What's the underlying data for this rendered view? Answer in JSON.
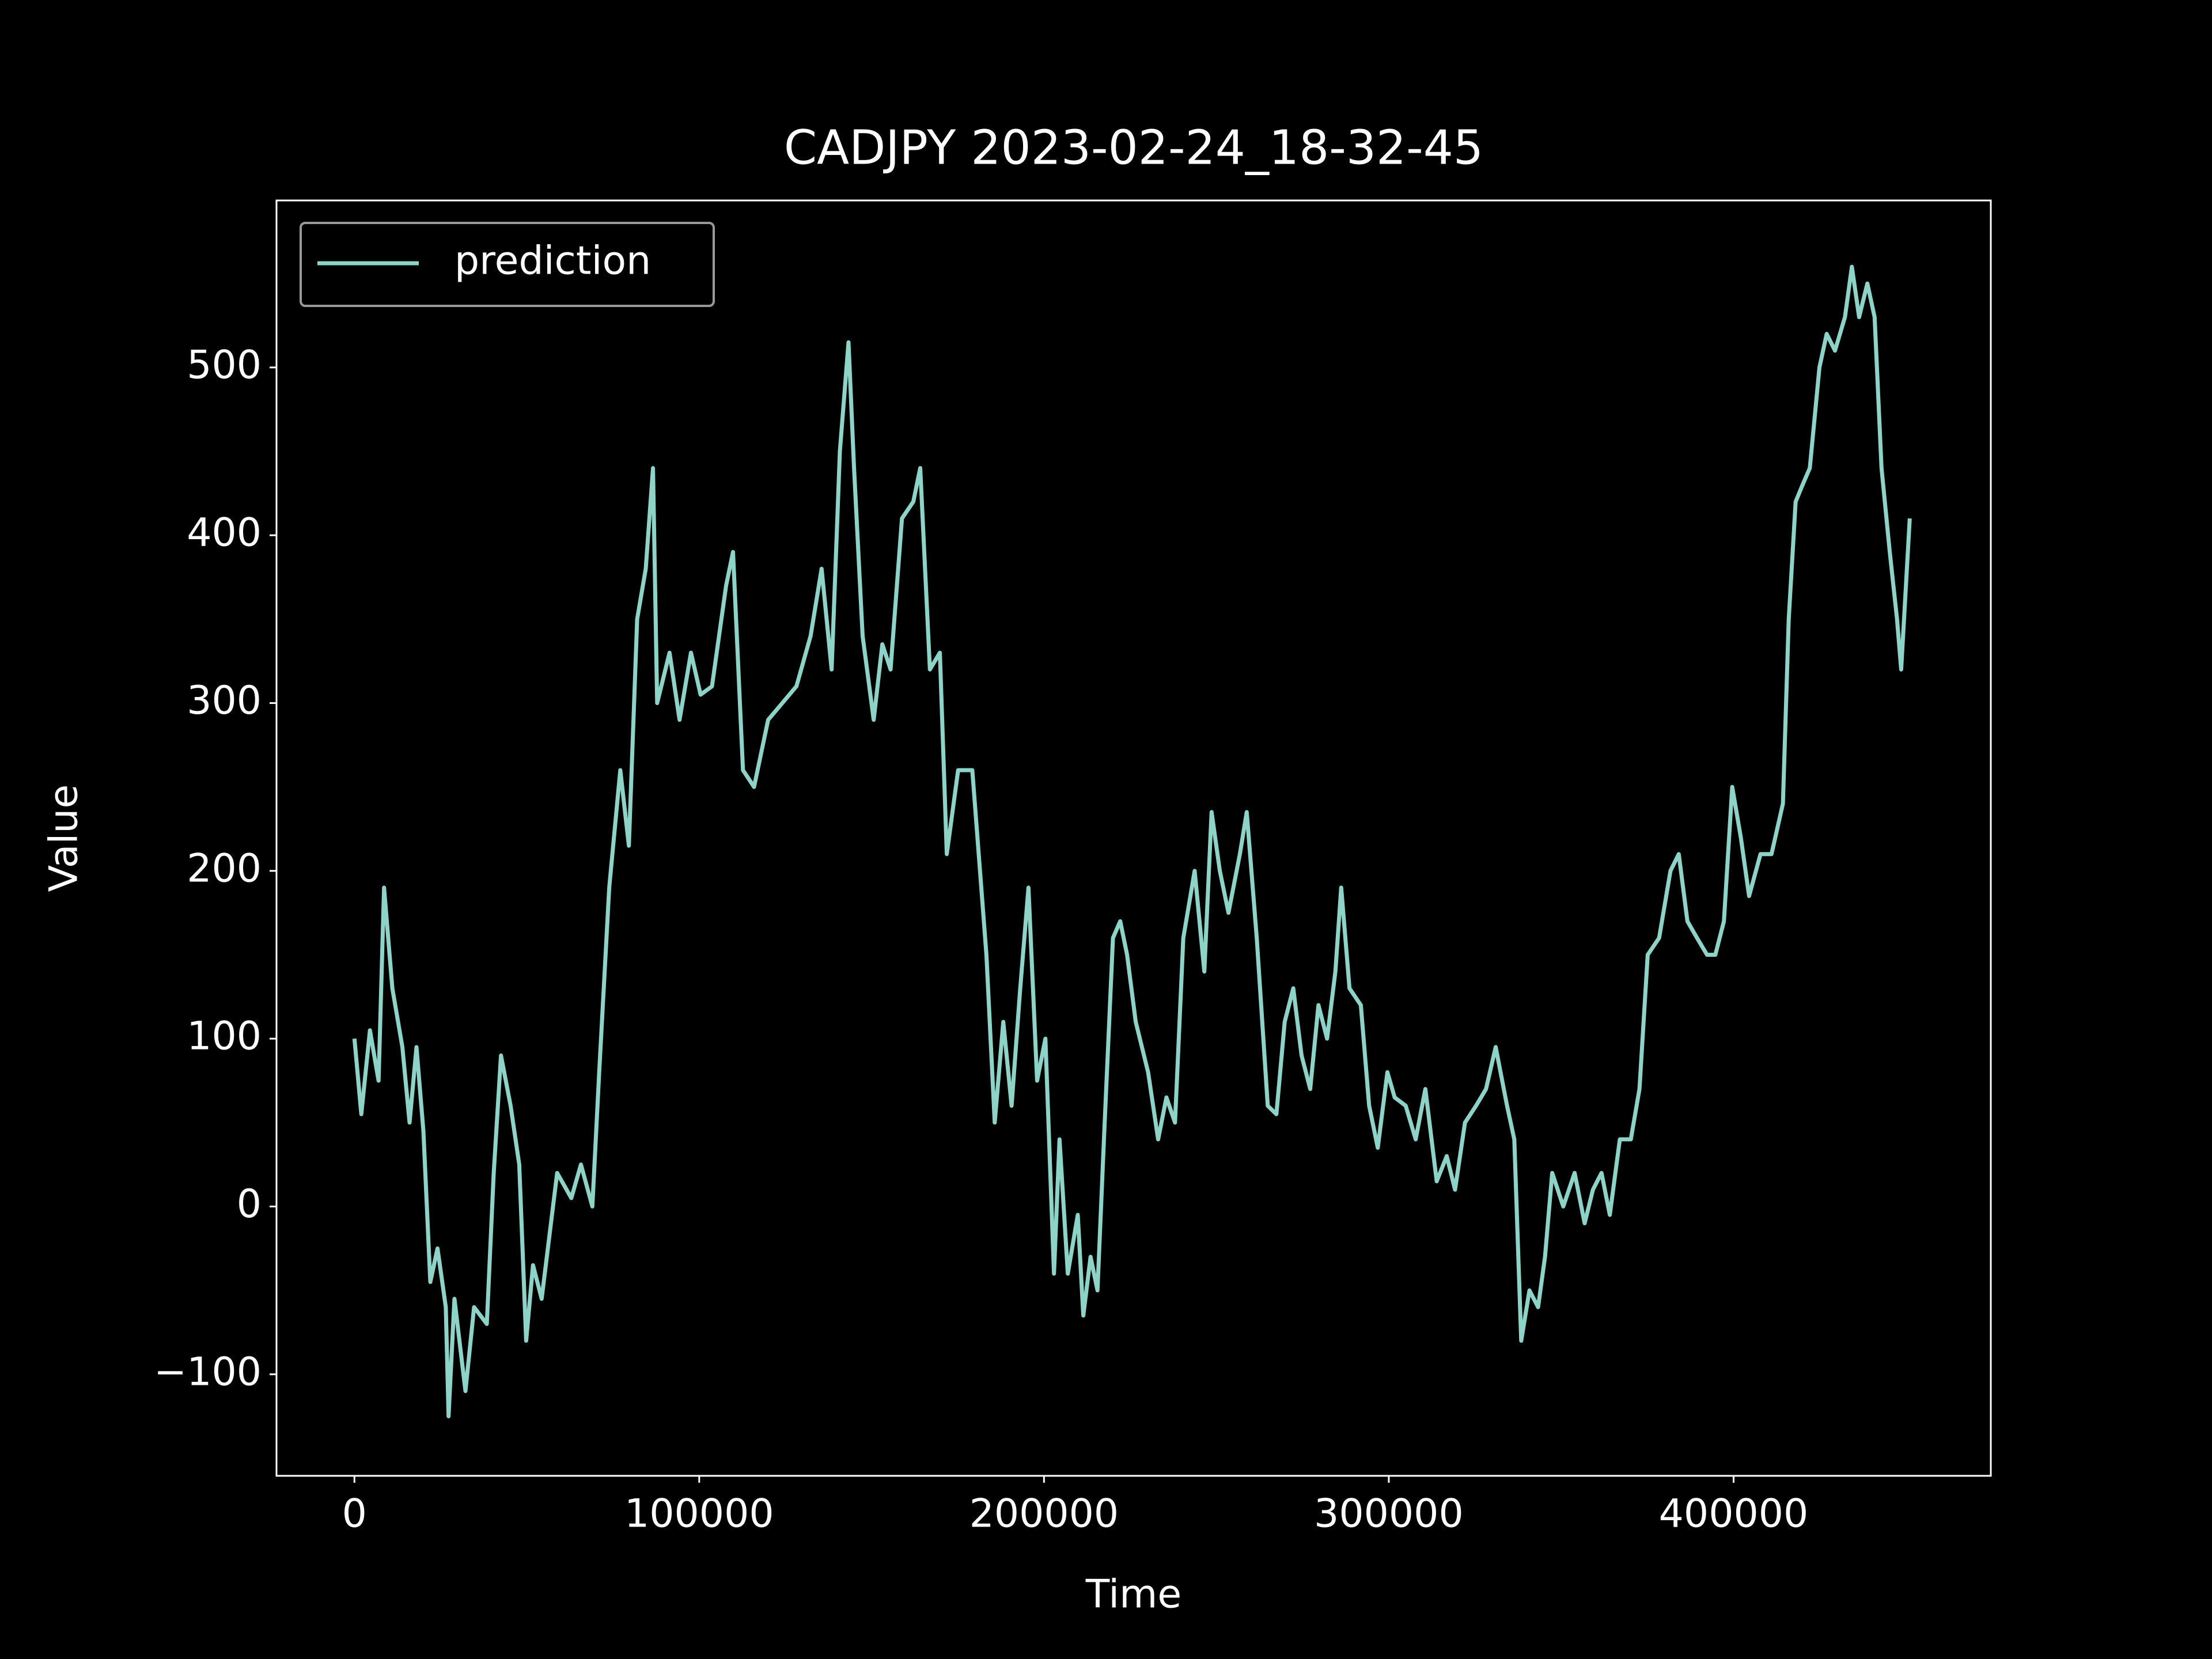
{
  "chart_data": {
    "type": "line",
    "title": "CADJPY 2023-02-24_18-32-45",
    "x_label": "Time",
    "y_label": "Value",
    "x": [
      0,
      2000,
      4500,
      7000,
      8600,
      11000,
      13900,
      16000,
      18000,
      20000,
      22000,
      24100,
      26500,
      27300,
      29000,
      32200,
      34700,
      38400,
      40400,
      42500,
      45300,
      47800,
      49800,
      51800,
      54300,
      58800,
      62900,
      65700,
      69000,
      71000,
      73900,
      77100,
      79600,
      82000,
      84500,
      86600,
      87800,
      91400,
      94300,
      97600,
      100400,
      103700,
      107800,
      109800,
      112700,
      115900,
      120000,
      124100,
      128200,
      132300,
      135500,
      138400,
      140800,
      143300,
      144900,
      147400,
      150600,
      153100,
      155500,
      158800,
      162100,
      164100,
      166900,
      169800,
      171800,
      175100,
      179200,
      183300,
      185700,
      188200,
      190600,
      193100,
      195500,
      198000,
      200400,
      202900,
      204500,
      206900,
      209800,
      211400,
      213500,
      215500,
      217600,
      220000,
      222100,
      224100,
      226600,
      230200,
      233100,
      235500,
      238000,
      240400,
      243700,
      246500,
      248600,
      251000,
      253500,
      256800,
      258800,
      261700,
      264900,
      267400,
      269800,
      272300,
      274700,
      277200,
      279600,
      282100,
      284500,
      286200,
      288600,
      291900,
      294300,
      296800,
      299600,
      301700,
      304900,
      307800,
      310600,
      313900,
      316800,
      319200,
      322100,
      325300,
      328200,
      331000,
      334300,
      336400,
      338400,
      340800,
      343300,
      345300,
      347400,
      350600,
      353900,
      356800,
      359200,
      361700,
      364100,
      367000,
      370200,
      372700,
      375100,
      378400,
      381700,
      384100,
      386600,
      389400,
      392300,
      394700,
      397200,
      399600,
      402100,
      404500,
      407800,
      411000,
      414300,
      416000,
      418000,
      420000,
      422100,
      424900,
      427000,
      429400,
      432300,
      434300,
      436400,
      438800,
      440900,
      442900,
      445300,
      447400,
      448600,
      451100
    ],
    "series": [
      {
        "name": "prediction",
        "color": "#8dd3c7",
        "values": [
          100,
          55,
          105,
          75,
          190,
          130,
          95,
          50,
          95,
          45,
          -45,
          -25,
          -60,
          -125,
          -55,
          -110,
          -60,
          -70,
          20,
          90,
          60,
          25,
          -80,
          -35,
          -55,
          20,
          5,
          25,
          0,
          80,
          190,
          260,
          215,
          350,
          380,
          440,
          300,
          330,
          290,
          330,
          305,
          310,
          370,
          390,
          260,
          250,
          290,
          300,
          310,
          340,
          380,
          320,
          450,
          515,
          440,
          340,
          290,
          335,
          320,
          410,
          420,
          440,
          320,
          330,
          210,
          260,
          260,
          150,
          50,
          110,
          60,
          130,
          190,
          75,
          100,
          -40,
          40,
          -40,
          -5,
          -65,
          -30,
          -50,
          50,
          160,
          170,
          150,
          110,
          80,
          40,
          65,
          50,
          160,
          200,
          140,
          235,
          200,
          175,
          210,
          235,
          160,
          60,
          55,
          110,
          130,
          90,
          70,
          120,
          100,
          140,
          190,
          130,
          120,
          60,
          35,
          80,
          65,
          60,
          40,
          70,
          15,
          30,
          10,
          50,
          60,
          70,
          95,
          60,
          40,
          -80,
          -50,
          -60,
          -30,
          20,
          0,
          20,
          -10,
          10,
          20,
          -5,
          40,
          40,
          70,
          150,
          160,
          200,
          210,
          170,
          160,
          150,
          150,
          170,
          250,
          220,
          185,
          210,
          210,
          240,
          350,
          420,
          430,
          440,
          500,
          520,
          510,
          530,
          560,
          530,
          550,
          530,
          440,
          390,
          350,
          320,
          410
        ]
      }
    ],
    "xlim": [
      -22600,
      474600
    ],
    "ylim": [
      -160.5,
      599.5
    ],
    "xticks": [
      0,
      100000,
      200000,
      300000,
      400000
    ],
    "yticks": [
      {
        "value": -100,
        "label": "−100"
      },
      0,
      100,
      200,
      300,
      400,
      500
    ],
    "grid": false,
    "legend": "upper left"
  }
}
